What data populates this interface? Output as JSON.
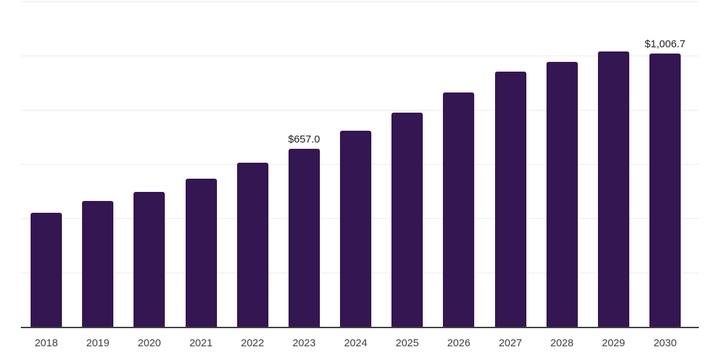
{
  "chart_data": {
    "type": "bar",
    "title": "",
    "xlabel": "",
    "ylabel": "",
    "categories": [
      "2018",
      "2019",
      "2020",
      "2021",
      "2022",
      "2023",
      "2024",
      "2025",
      "2026",
      "2027",
      "2028",
      "2029",
      "2030"
    ],
    "values": [
      420,
      463,
      497,
      547,
      604,
      657.0,
      722,
      790,
      863,
      940,
      977,
      1015,
      1006.7
    ],
    "point_labels": {
      "2023": "$657.0",
      "2030": "$1,006.7"
    },
    "ylim": [
      0,
      1200
    ],
    "gridline_step": 200,
    "grid": true,
    "legend": false,
    "y_tick_labels_visible": false
  },
  "styles": {
    "bar_color": "#341652",
    "grid_color": "#ededed",
    "axis_color": "#3f3f3f",
    "year_label_color": "#3d3d3d",
    "value_label_color": "#222222",
    "background_color": "#ffffff"
  }
}
